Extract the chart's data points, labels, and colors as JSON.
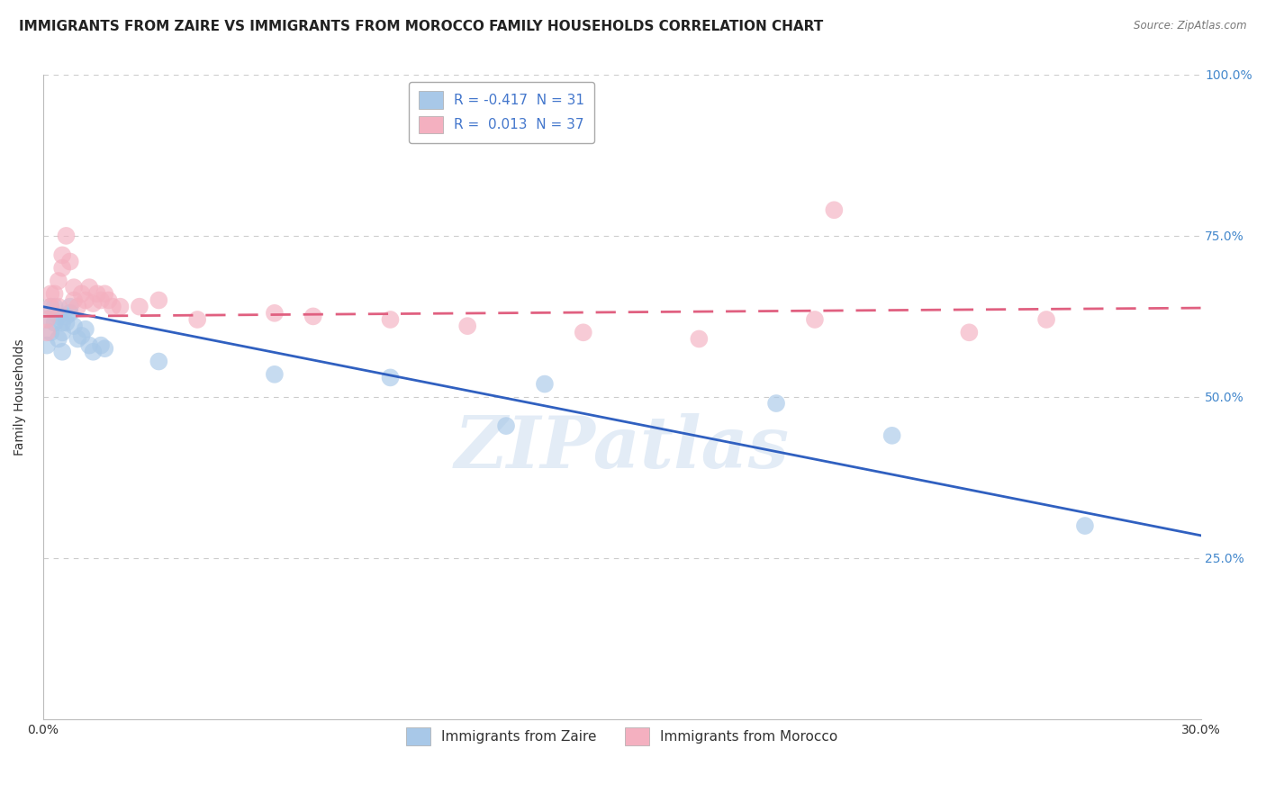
{
  "title": "IMMIGRANTS FROM ZAIRE VS IMMIGRANTS FROM MOROCCO FAMILY HOUSEHOLDS CORRELATION CHART",
  "source": "Source: ZipAtlas.com",
  "ylabel": "Family Households",
  "legend_label_blue": "Immigrants from Zaire",
  "legend_label_pink": "Immigrants from Morocco",
  "R_blue": -0.417,
  "N_blue": 31,
  "R_pink": 0.013,
  "N_pink": 37,
  "color_blue": "#a8c8e8",
  "color_pink": "#f4b0c0",
  "line_color_blue": "#3060c0",
  "line_color_pink": "#e06080",
  "background_color": "#ffffff",
  "grid_color": "#cccccc",
  "xmin": 0.0,
  "xmax": 0.3,
  "ymin": 0.0,
  "ymax": 1.0,
  "xticks": [
    0.0,
    0.05,
    0.1,
    0.15,
    0.2,
    0.25,
    0.3
  ],
  "yticks": [
    0.25,
    0.5,
    0.75,
    1.0
  ],
  "ytick_labels": [
    "25.0%",
    "50.0%",
    "75.0%",
    "100.0%"
  ],
  "zaire_x": [
    0.001,
    0.001,
    0.002,
    0.002,
    0.003,
    0.003,
    0.004,
    0.004,
    0.005,
    0.005,
    0.005,
    0.006,
    0.006,
    0.007,
    0.007,
    0.008,
    0.009,
    0.01,
    0.011,
    0.012,
    0.013,
    0.015,
    0.016,
    0.03,
    0.06,
    0.09,
    0.13,
    0.19,
    0.22,
    0.27,
    0.12
  ],
  "zaire_y": [
    0.62,
    0.58,
    0.64,
    0.6,
    0.64,
    0.615,
    0.625,
    0.59,
    0.615,
    0.6,
    0.57,
    0.625,
    0.615,
    0.63,
    0.64,
    0.61,
    0.59,
    0.595,
    0.605,
    0.58,
    0.57,
    0.58,
    0.575,
    0.555,
    0.535,
    0.53,
    0.52,
    0.49,
    0.44,
    0.3,
    0.455
  ],
  "morocco_x": [
    0.001,
    0.001,
    0.002,
    0.002,
    0.003,
    0.004,
    0.004,
    0.005,
    0.005,
    0.006,
    0.007,
    0.008,
    0.008,
    0.009,
    0.01,
    0.011,
    0.012,
    0.013,
    0.014,
    0.015,
    0.016,
    0.017,
    0.018,
    0.02,
    0.025,
    0.03,
    0.04,
    0.06,
    0.07,
    0.09,
    0.11,
    0.14,
    0.17,
    0.2,
    0.24,
    0.26,
    0.205
  ],
  "morocco_y": [
    0.62,
    0.6,
    0.64,
    0.66,
    0.66,
    0.68,
    0.64,
    0.72,
    0.7,
    0.75,
    0.71,
    0.67,
    0.65,
    0.64,
    0.66,
    0.65,
    0.67,
    0.645,
    0.66,
    0.65,
    0.66,
    0.65,
    0.64,
    0.64,
    0.64,
    0.65,
    0.62,
    0.63,
    0.625,
    0.62,
    0.61,
    0.6,
    0.59,
    0.62,
    0.6,
    0.62,
    0.79
  ],
  "watermark": "ZIPatlas",
  "title_fontsize": 11,
  "axis_fontsize": 10,
  "tick_fontsize": 10,
  "legend_fontsize": 11,
  "blue_line_x0": 0.0,
  "blue_line_y0": 0.64,
  "blue_line_x1": 0.3,
  "blue_line_y1": 0.285,
  "pink_line_x0": 0.0,
  "pink_line_y0": 0.625,
  "pink_line_x1": 0.3,
  "pink_line_y1": 0.638
}
